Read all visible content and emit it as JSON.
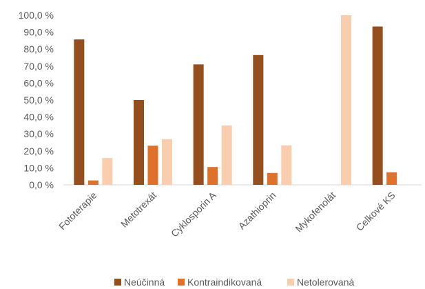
{
  "chart_data": {
    "type": "bar",
    "categories": [
      "Fototerapie",
      "Metotrexát",
      "Cyklosporin A",
      "Azathioprin",
      "Mykofenolát",
      "Celkové KS"
    ],
    "series": [
      {
        "name": "Neúčinná",
        "values": [
          85.7,
          50.0,
          71.0,
          76.5,
          0,
          93.3
        ],
        "color": "#954F1F"
      },
      {
        "name": "Kontraindikovaná",
        "values": [
          2.6,
          23.1,
          10.5,
          7.0,
          0,
          7.4
        ],
        "color": "#E0712B"
      },
      {
        "name": "Netolerovaná",
        "values": [
          15.8,
          26.9,
          35.0,
          23.3,
          100.0,
          0
        ],
        "color": "#F8CEAF"
      }
    ],
    "y_ticks": [
      "0,0 %",
      "10,0 %",
      "20,0 %",
      "30,0 %",
      "40,0 %",
      "50,0 %",
      "60,0 %",
      "70,0 %",
      "80,0 %",
      "90,0 %",
      "100,0 %"
    ],
    "ylim": [
      0,
      100
    ],
    "grid": false,
    "legend_position": "bottom",
    "title": "",
    "xlabel": "",
    "ylabel": ""
  }
}
